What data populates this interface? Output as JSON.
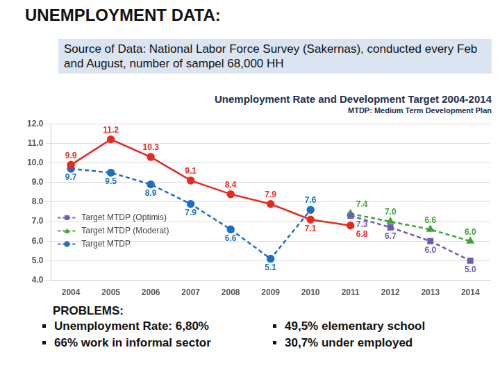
{
  "header": "UNEMPLOYMENT DATA:",
  "source_note": "Source of Data: National Labor Force Survey (Sakernas), conducted every Feb and August, number of sampel 68,000 HH",
  "chart_data": {
    "type": "line",
    "title": "Unemployment Rate and Development Target 2004-2014",
    "subtitle": "MTDP: Medium Term Development Plan",
    "categories": [
      "2004",
      "2005",
      "2006",
      "2007",
      "2008",
      "2009",
      "2010",
      "2011",
      "2012",
      "2013",
      "2014"
    ],
    "series": [
      {
        "color": "#e52b20",
        "marker": "circle",
        "line_style": "solid",
        "values": [
          9.9,
          11.2,
          10.3,
          9.1,
          8.4,
          7.9,
          7.1,
          6.8,
          null,
          null,
          null
        ],
        "value_labels": [
          "9.9",
          "11.2",
          "10.3",
          "9.1",
          "8.4",
          "7.9",
          "7.1",
          "6.8",
          null,
          null,
          null
        ]
      },
      {
        "name": "Target MTDP (Optimis)",
        "color": "#6f5bb8",
        "marker": "square",
        "line_style": "dashed",
        "values": [
          null,
          null,
          null,
          null,
          null,
          null,
          null,
          7.3,
          6.7,
          6.0,
          5.0
        ],
        "value_labels": [
          null,
          null,
          null,
          null,
          null,
          null,
          null,
          "7.3",
          "6.7",
          "6.0",
          "5.0"
        ]
      },
      {
        "name": "Target MTDP (Moderat)",
        "color": "#3ea33a",
        "marker": "triangle",
        "line_style": "dashed",
        "values": [
          null,
          null,
          null,
          null,
          null,
          null,
          null,
          7.4,
          7.0,
          6.6,
          6.0
        ],
        "value_labels": [
          null,
          null,
          null,
          null,
          null,
          null,
          null,
          "7.4",
          "7.0",
          "6.6",
          "6.0"
        ]
      },
      {
        "name": "Target MTDP",
        "color": "#1c6fc4",
        "marker": "circle",
        "line_style": "dashed",
        "values": [
          9.7,
          9.5,
          8.9,
          7.9,
          6.6,
          5.1,
          7.6,
          null,
          null,
          null,
          null
        ],
        "value_labels": [
          "9.7",
          "9.5",
          "8.9",
          "7.9",
          "6.6",
          "5.1",
          "7.6",
          null,
          null,
          null,
          null
        ]
      }
    ],
    "ylim": [
      4,
      12
    ],
    "yticks": [
      {
        "value": 4,
        "label": "4.0"
      },
      {
        "value": 5,
        "label": "5.0"
      },
      {
        "value": 6,
        "label": "6.0"
      },
      {
        "value": 7,
        "label": "7.0"
      },
      {
        "value": 8,
        "label": "8.0"
      },
      {
        "value": 9,
        "label": "9.0"
      },
      {
        "value": 10,
        "label": "10.0"
      },
      {
        "value": 11,
        "label": "11.0"
      },
      {
        "value": 12,
        "label": "12.0"
      }
    ],
    "grid": true,
    "legend": "left",
    "data_labels": true
  },
  "problems": {
    "title": "PROBLEMS:",
    "columns": [
      [
        "Unemployment Rate: 6,80%",
        "66% work in informal sector"
      ],
      [
        "49,5% elementary school",
        "30,7% under employed"
      ]
    ]
  }
}
